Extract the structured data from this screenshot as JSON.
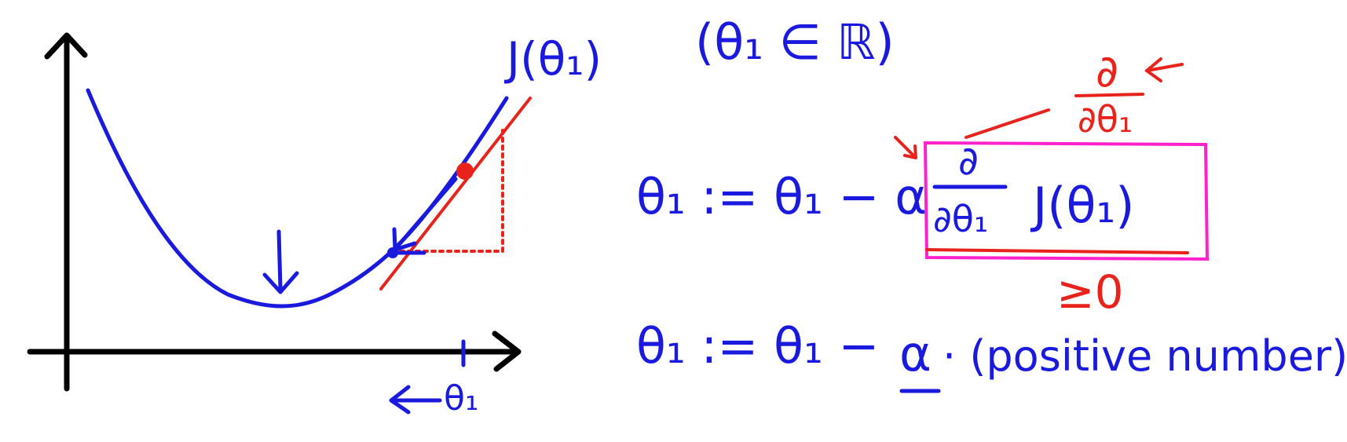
{
  "graph": {
    "curve_label": "J(θ₁)",
    "x_axis_label": "θ₁",
    "colors": {
      "axes": "#000000",
      "curve": "#1a1adf",
      "tangent": "#e8231b"
    }
  },
  "domain_note": "(θ₁ ∈ ℝ)",
  "update_rule": {
    "lhs": "θ₁ := θ₁ − α",
    "derivative_numerator": "∂",
    "derivative_denominator": "∂θ₁",
    "function": "J(θ₁)",
    "box_color": "#ff22cc"
  },
  "annotations": {
    "partial_numerator": "∂",
    "partial_denominator": "∂θ₁",
    "sign_note": "≥0"
  },
  "second_rule": {
    "lhs": "θ₁ := θ₁ −",
    "alpha": "α",
    "rest": "· (positive number)"
  }
}
